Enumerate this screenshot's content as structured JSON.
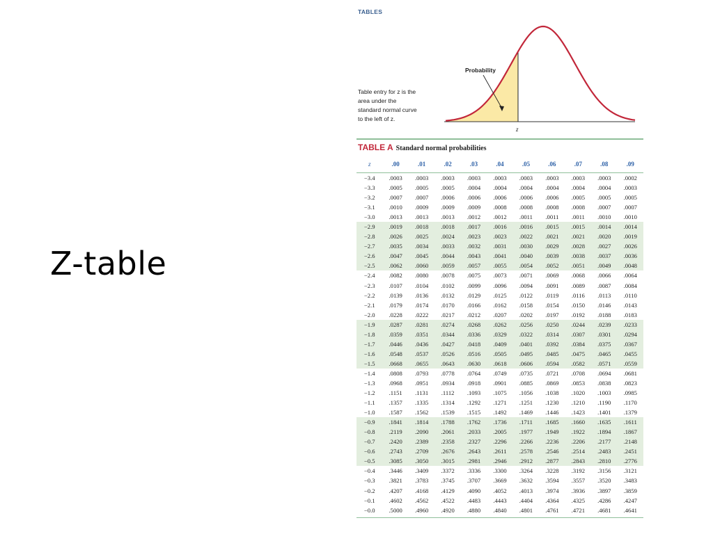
{
  "slide": {
    "title": "Z-table"
  },
  "figure": {
    "section_label": "TABLES",
    "caption_lines": [
      "Table entry for z is the",
      "area under the",
      "standard normal curve",
      "to the left of z."
    ],
    "curve_label": "Probability",
    "axis_label": "z",
    "colors": {
      "curve": "#c2273a",
      "fill": "#fbe9a6",
      "accent": "#2f62a8",
      "rule": "#8fbf9a",
      "shade": "#e3eedf"
    }
  },
  "table": {
    "tag": "TABLE A",
    "title": "Standard normal probabilities",
    "headers": [
      "z",
      ".00",
      ".01",
      ".02",
      ".03",
      ".04",
      ".05",
      ".06",
      ".07",
      ".08",
      ".09"
    ],
    "rows": [
      [
        "−3.4",
        ".0003",
        ".0003",
        ".0003",
        ".0003",
        ".0003",
        ".0003",
        ".0003",
        ".0003",
        ".0003",
        ".0002"
      ],
      [
        "−3.3",
        ".0005",
        ".0005",
        ".0005",
        ".0004",
        ".0004",
        ".0004",
        ".0004",
        ".0004",
        ".0004",
        ".0003"
      ],
      [
        "−3.2",
        ".0007",
        ".0007",
        ".0006",
        ".0006",
        ".0006",
        ".0006",
        ".0006",
        ".0005",
        ".0005",
        ".0005"
      ],
      [
        "−3.1",
        ".0010",
        ".0009",
        ".0009",
        ".0009",
        ".0008",
        ".0008",
        ".0008",
        ".0008",
        ".0007",
        ".0007"
      ],
      [
        "−3.0",
        ".0013",
        ".0013",
        ".0013",
        ".0012",
        ".0012",
        ".0011",
        ".0011",
        ".0011",
        ".0010",
        ".0010"
      ],
      [
        "−2.9",
        ".0019",
        ".0018",
        ".0018",
        ".0017",
        ".0016",
        ".0016",
        ".0015",
        ".0015",
        ".0014",
        ".0014"
      ],
      [
        "−2.8",
        ".0026",
        ".0025",
        ".0024",
        ".0023",
        ".0023",
        ".0022",
        ".0021",
        ".0021",
        ".0020",
        ".0019"
      ],
      [
        "−2.7",
        ".0035",
        ".0034",
        ".0033",
        ".0032",
        ".0031",
        ".0030",
        ".0029",
        ".0028",
        ".0027",
        ".0026"
      ],
      [
        "−2.6",
        ".0047",
        ".0045",
        ".0044",
        ".0043",
        ".0041",
        ".0040",
        ".0039",
        ".0038",
        ".0037",
        ".0036"
      ],
      [
        "−2.5",
        ".0062",
        ".0060",
        ".0059",
        ".0057",
        ".0055",
        ".0054",
        ".0052",
        ".0051",
        ".0049",
        ".0048"
      ],
      [
        "−2.4",
        ".0082",
        ".0080",
        ".0078",
        ".0075",
        ".0073",
        ".0071",
        ".0069",
        ".0068",
        ".0066",
        ".0064"
      ],
      [
        "−2.3",
        ".0107",
        ".0104",
        ".0102",
        ".0099",
        ".0096",
        ".0094",
        ".0091",
        ".0089",
        ".0087",
        ".0084"
      ],
      [
        "−2.2",
        ".0139",
        ".0136",
        ".0132",
        ".0129",
        ".0125",
        ".0122",
        ".0119",
        ".0116",
        ".0113",
        ".0110"
      ],
      [
        "−2.1",
        ".0179",
        ".0174",
        ".0170",
        ".0166",
        ".0162",
        ".0158",
        ".0154",
        ".0150",
        ".0146",
        ".0143"
      ],
      [
        "−2.0",
        ".0228",
        ".0222",
        ".0217",
        ".0212",
        ".0207",
        ".0202",
        ".0197",
        ".0192",
        ".0188",
        ".0183"
      ],
      [
        "−1.9",
        ".0287",
        ".0281",
        ".0274",
        ".0268",
        ".0262",
        ".0256",
        ".0250",
        ".0244",
        ".0239",
        ".0233"
      ],
      [
        "−1.8",
        ".0359",
        ".0351",
        ".0344",
        ".0336",
        ".0329",
        ".0322",
        ".0314",
        ".0307",
        ".0301",
        ".0294"
      ],
      [
        "−1.7",
        ".0446",
        ".0436",
        ".0427",
        ".0418",
        ".0409",
        ".0401",
        ".0392",
        ".0384",
        ".0375",
        ".0367"
      ],
      [
        "−1.6",
        ".0548",
        ".0537",
        ".0526",
        ".0516",
        ".0505",
        ".0495",
        ".0485",
        ".0475",
        ".0465",
        ".0455"
      ],
      [
        "−1.5",
        ".0668",
        ".0655",
        ".0643",
        ".0630",
        ".0618",
        ".0606",
        ".0594",
        ".0582",
        ".0571",
        ".0559"
      ],
      [
        "−1.4",
        ".0808",
        ".0793",
        ".0778",
        ".0764",
        ".0749",
        ".0735",
        ".0721",
        ".0708",
        ".0694",
        ".0681"
      ],
      [
        "−1.3",
        ".0968",
        ".0951",
        ".0934",
        ".0918",
        ".0901",
        ".0885",
        ".0869",
        ".0853",
        ".0838",
        ".0823"
      ],
      [
        "−1.2",
        ".1151",
        ".1131",
        ".1112",
        ".1093",
        ".1075",
        ".1056",
        ".1038",
        ".1020",
        ".1003",
        ".0985"
      ],
      [
        "−1.1",
        ".1357",
        ".1335",
        ".1314",
        ".1292",
        ".1271",
        ".1251",
        ".1230",
        ".1210",
        ".1190",
        ".1170"
      ],
      [
        "−1.0",
        ".1587",
        ".1562",
        ".1539",
        ".1515",
        ".1492",
        ".1469",
        ".1446",
        ".1423",
        ".1401",
        ".1379"
      ],
      [
        "−0.9",
        ".1841",
        ".1814",
        ".1788",
        ".1762",
        ".1736",
        ".1711",
        ".1685",
        ".1660",
        ".1635",
        ".1611"
      ],
      [
        "−0.8",
        ".2119",
        ".2090",
        ".2061",
        ".2033",
        ".2005",
        ".1977",
        ".1949",
        ".1922",
        ".1894",
        ".1867"
      ],
      [
        "−0.7",
        ".2420",
        ".2389",
        ".2358",
        ".2327",
        ".2296",
        ".2266",
        ".2236",
        ".2206",
        ".2177",
        ".2148"
      ],
      [
        "−0.6",
        ".2743",
        ".2709",
        ".2676",
        ".2643",
        ".2611",
        ".2578",
        ".2546",
        ".2514",
        ".2483",
        ".2451"
      ],
      [
        "−0.5",
        ".3085",
        ".3050",
        ".3015",
        ".2981",
        ".2946",
        ".2912",
        ".2877",
        ".2843",
        ".2810",
        ".2776"
      ],
      [
        "−0.4",
        ".3446",
        ".3409",
        ".3372",
        ".3336",
        ".3300",
        ".3264",
        ".3228",
        ".3192",
        ".3156",
        ".3121"
      ],
      [
        "−0.3",
        ".3821",
        ".3783",
        ".3745",
        ".3707",
        ".3669",
        ".3632",
        ".3594",
        ".3557",
        ".3520",
        ".3483"
      ],
      [
        "−0.2",
        ".4207",
        ".4168",
        ".4129",
        ".4090",
        ".4052",
        ".4013",
        ".3974",
        ".3936",
        ".3897",
        ".3859"
      ],
      [
        "−0.1",
        ".4602",
        ".4562",
        ".4522",
        ".4483",
        ".4443",
        ".4404",
        ".4364",
        ".4325",
        ".4286",
        ".4247"
      ],
      [
        "−0.0",
        ".5000",
        ".4960",
        ".4920",
        ".4880",
        ".4840",
        ".4801",
        ".4761",
        ".4721",
        ".4681",
        ".4641"
      ]
    ]
  }
}
